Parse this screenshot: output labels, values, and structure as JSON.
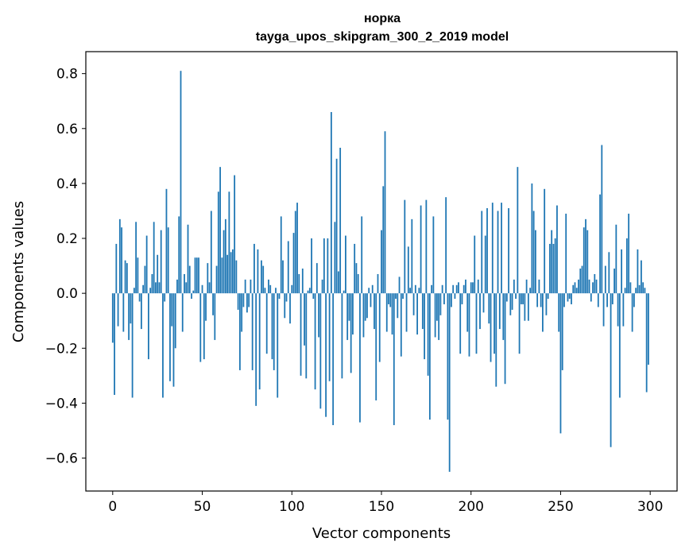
{
  "chart_data": {
    "type": "bar",
    "title": "норка",
    "subtitle": "tayga_upos_skipgram_300_2_2019 model",
    "xlabel": "Vector components",
    "ylabel": "Components values",
    "xlim": [
      -15,
      315
    ],
    "ylim": [
      -0.72,
      0.88
    ],
    "xticks": [
      0,
      50,
      100,
      150,
      200,
      250,
      300
    ],
    "xtick_labels": [
      "0",
      "50",
      "100",
      "150",
      "200",
      "250",
      "300"
    ],
    "yticks": [
      -0.6,
      -0.4,
      -0.2,
      0.0,
      0.2,
      0.4,
      0.6,
      0.8
    ],
    "ytick_labels": [
      "−0.6",
      "−0.4",
      "−0.2",
      "0.0",
      "0.2",
      "0.4",
      "0.6",
      "0.8"
    ],
    "bar_color": "#1f77b4",
    "values": [
      -0.18,
      -0.37,
      0.18,
      -0.12,
      0.27,
      0.24,
      -0.14,
      0.12,
      0.11,
      -0.17,
      -0.11,
      -0.38,
      0.02,
      0.26,
      0.13,
      -0.03,
      -0.13,
      0.03,
      0.1,
      0.21,
      -0.24,
      0.02,
      0.07,
      0.26,
      0.04,
      0.14,
      0.04,
      0.23,
      -0.38,
      -0.03,
      0.38,
      0.24,
      -0.32,
      -0.12,
      -0.34,
      -0.2,
      0.05,
      0.28,
      0.81,
      -0.14,
      0.07,
      0.04,
      0.25,
      0.1,
      -0.02,
      0.01,
      0.13,
      0.13,
      0.13,
      -0.25,
      0.03,
      -0.24,
      -0.1,
      0.11,
      0.04,
      0.3,
      -0.08,
      -0.17,
      0.1,
      0.37,
      0.46,
      0.13,
      0.23,
      0.27,
      0.14,
      0.37,
      0.15,
      0.16,
      0.43,
      0.12,
      -0.06,
      -0.28,
      -0.14,
      -0.05,
      0.05,
      -0.07,
      -0.05,
      0.05,
      -0.28,
      0.18,
      -0.41,
      0.16,
      -0.35,
      0.12,
      0.1,
      0.02,
      -0.22,
      0.05,
      0.03,
      -0.24,
      -0.28,
      0.02,
      -0.38,
      -0.02,
      0.28,
      0.12,
      -0.09,
      -0.03,
      0.19,
      -0.11,
      0.03,
      0.22,
      0.3,
      0.33,
      0.07,
      -0.3,
      0.09,
      -0.19,
      -0.31,
      0.01,
      0.02,
      0.2,
      -0.02,
      -0.35,
      0.11,
      -0.16,
      -0.42,
      0.05,
      0.2,
      -0.45,
      0.2,
      -0.32,
      0.66,
      -0.48,
      0.26,
      0.49,
      0.08,
      0.53,
      -0.31,
      0.01,
      0.21,
      -0.17,
      -0.1,
      -0.29,
      -0.15,
      0.18,
      0.11,
      0.07,
      -0.47,
      0.28,
      -0.16,
      -0.1,
      -0.09,
      0.02,
      -0.05,
      0.03,
      -0.13,
      -0.39,
      0.07,
      -0.25,
      0.23,
      0.39,
      0.59,
      -0.14,
      -0.04,
      -0.05,
      -0.15,
      -0.48,
      -0.02,
      -0.09,
      0.06,
      -0.23,
      -0.02,
      0.34,
      -0.14,
      0.17,
      0.02,
      0.27,
      -0.08,
      0.03,
      -0.15,
      0.02,
      0.32,
      -0.13,
      -0.24,
      0.34,
      -0.3,
      -0.46,
      0.03,
      0.28,
      -0.16,
      -0.1,
      -0.17,
      -0.08,
      0.03,
      -0.04,
      0.35,
      -0.46,
      -0.65,
      -0.05,
      0.03,
      -0.02,
      0.03,
      0.04,
      -0.22,
      -0.04,
      0.03,
      0.05,
      -0.14,
      -0.23,
      0.04,
      0.04,
      0.21,
      -0.22,
      0.05,
      -0.13,
      0.3,
      -0.07,
      0.21,
      0.31,
      -0.11,
      -0.25,
      0.33,
      -0.22,
      -0.34,
      0.3,
      -0.13,
      0.33,
      -0.17,
      -0.33,
      -0.03,
      0.31,
      -0.08,
      -0.06,
      0.05,
      -0.02,
      0.46,
      -0.22,
      -0.04,
      -0.04,
      -0.1,
      0.05,
      -0.1,
      0.02,
      0.4,
      0.3,
      0.23,
      -0.05,
      0.05,
      -0.05,
      -0.14,
      0.38,
      -0.08,
      -0.02,
      0.18,
      0.23,
      0.18,
      0.2,
      0.32,
      -0.14,
      -0.51,
      -0.28,
      -0.05,
      0.29,
      -0.03,
      -0.02,
      -0.04,
      0.03,
      0.04,
      0.02,
      0.05,
      0.09,
      0.1,
      0.24,
      0.27,
      0.23,
      0.05,
      -0.03,
      0.04,
      0.07,
      0.05,
      -0.05,
      0.36,
      0.54,
      -0.12,
      0.1,
      -0.05,
      0.15,
      -0.56,
      -0.04,
      0.09,
      0.25,
      -0.12,
      -0.38,
      0.16,
      -0.12,
      0.02,
      0.2,
      0.29,
      0.04,
      -0.14,
      -0.05,
      0.02,
      0.16,
      0.03,
      0.12,
      0.04,
      0.02,
      -0.36,
      -0.26
    ]
  }
}
